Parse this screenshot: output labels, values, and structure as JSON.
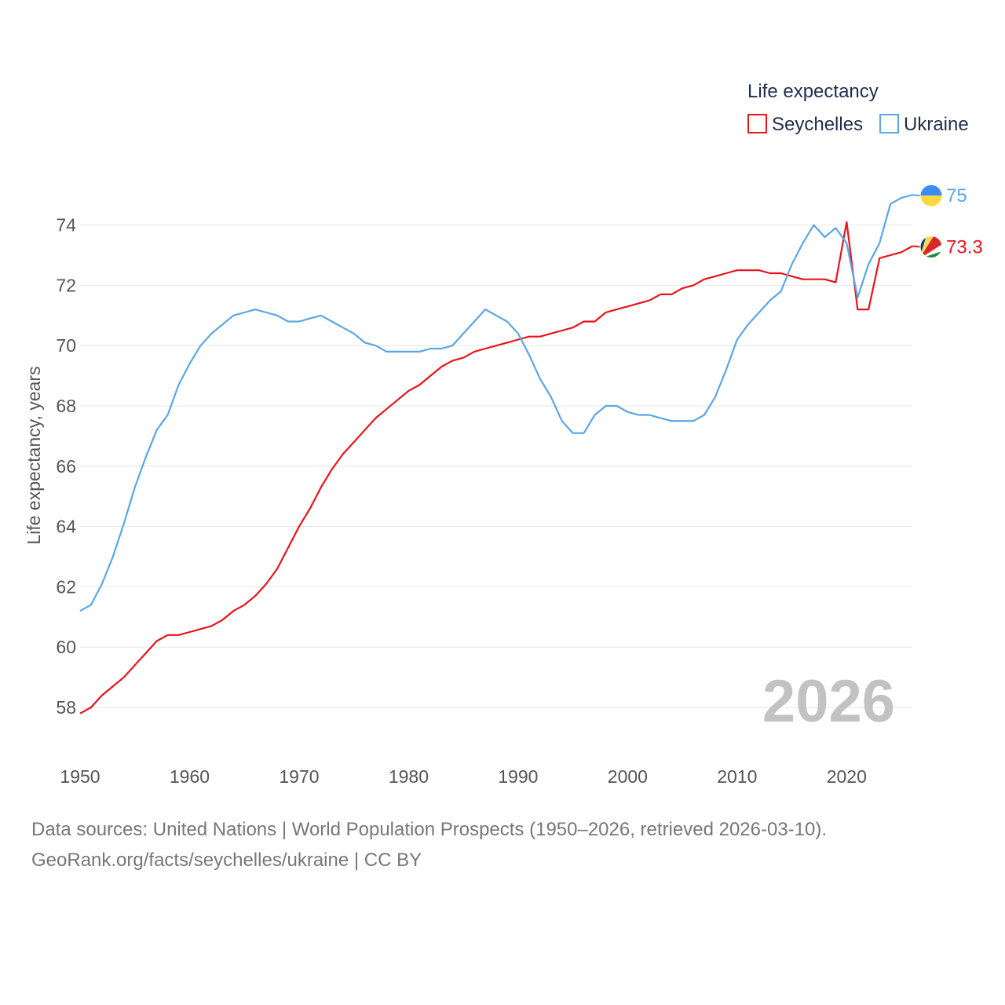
{
  "chart_data": {
    "type": "line",
    "title": "",
    "ylabel": "Life expectancy, years",
    "xlabel": "",
    "xlim": [
      1950,
      2026
    ],
    "ylim": [
      56.5,
      75.5
    ],
    "x_ticks": [
      1950,
      1960,
      1970,
      1980,
      1990,
      2000,
      2010,
      2020
    ],
    "y_ticks": [
      58,
      60,
      62,
      64,
      66,
      68,
      70,
      72,
      74
    ],
    "grid": true,
    "legend": {
      "title": "Life expectancy",
      "position": "top-right"
    },
    "current_year_label": "2026",
    "x": [
      1950,
      1951,
      1952,
      1953,
      1954,
      1955,
      1956,
      1957,
      1958,
      1959,
      1960,
      1961,
      1962,
      1963,
      1964,
      1965,
      1966,
      1967,
      1968,
      1969,
      1970,
      1971,
      1972,
      1973,
      1974,
      1975,
      1976,
      1977,
      1978,
      1979,
      1980,
      1981,
      1982,
      1983,
      1984,
      1985,
      1986,
      1987,
      1988,
      1989,
      1990,
      1991,
      1992,
      1993,
      1994,
      1995,
      1996,
      1997,
      1998,
      1999,
      2000,
      2001,
      2002,
      2003,
      2004,
      2005,
      2006,
      2007,
      2008,
      2009,
      2010,
      2011,
      2012,
      2013,
      2014,
      2015,
      2016,
      2017,
      2018,
      2019,
      2020,
      2021,
      2022,
      2023,
      2024,
      2025,
      2026
    ],
    "series": [
      {
        "name": "Seychelles",
        "color": "#e8131b",
        "end_label": "73.3",
        "flag": "seychelles-flag",
        "values": [
          57.8,
          58.0,
          58.4,
          58.7,
          59.0,
          59.4,
          59.8,
          60.2,
          60.4,
          60.4,
          60.5,
          60.6,
          60.7,
          60.9,
          61.2,
          61.4,
          61.7,
          62.1,
          62.6,
          63.3,
          64.0,
          64.6,
          65.3,
          65.9,
          66.4,
          66.8,
          67.2,
          67.6,
          67.9,
          68.2,
          68.5,
          68.7,
          69.0,
          69.3,
          69.5,
          69.6,
          69.8,
          69.9,
          70.0,
          70.1,
          70.2,
          70.3,
          70.3,
          70.4,
          70.5,
          70.6,
          70.8,
          70.8,
          71.1,
          71.2,
          71.3,
          71.4,
          71.5,
          71.7,
          71.7,
          71.9,
          72.0,
          72.2,
          72.3,
          72.4,
          72.5,
          72.5,
          72.5,
          72.4,
          72.4,
          72.3,
          72.2,
          72.2,
          72.2,
          72.1,
          74.1,
          71.2,
          71.2,
          72.9,
          73.0,
          73.1,
          73.3
        ]
      },
      {
        "name": "Ukraine",
        "color": "#5aa6e6",
        "end_label": "75",
        "flag": "ukraine-flag",
        "values": [
          61.2,
          61.4,
          62.1,
          63.0,
          64.1,
          65.3,
          66.3,
          67.2,
          67.7,
          68.7,
          69.4,
          70.0,
          70.4,
          70.7,
          71.0,
          71.1,
          71.2,
          71.1,
          71.0,
          70.8,
          70.8,
          70.9,
          71.0,
          70.8,
          70.6,
          70.4,
          70.1,
          70.0,
          69.8,
          69.8,
          69.8,
          69.8,
          69.9,
          69.9,
          70.0,
          70.4,
          70.8,
          71.2,
          71.0,
          70.8,
          70.4,
          69.7,
          68.9,
          68.3,
          67.5,
          67.1,
          67.1,
          67.7,
          68.0,
          68.0,
          67.8,
          67.7,
          67.7,
          67.6,
          67.5,
          67.5,
          67.5,
          67.7,
          68.3,
          69.2,
          70.2,
          70.7,
          71.1,
          71.5,
          71.8,
          72.7,
          73.4,
          74.0,
          73.6,
          73.9,
          73.4,
          71.6,
          72.7,
          73.4,
          74.7,
          74.9,
          75.0
        ]
      }
    ]
  },
  "footer": {
    "line1": "Data sources: United Nations | World Population Prospects (1950–2026, retrieved 2026-03-10).",
    "line2": "GeoRank.org/facts/seychelles/ukraine | CC BY"
  }
}
